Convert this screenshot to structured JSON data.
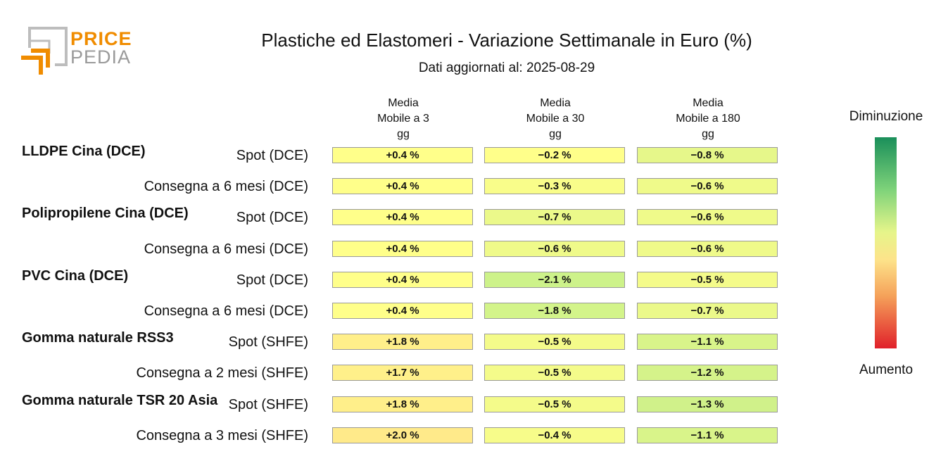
{
  "logo": {
    "price": "PRICE",
    "pedia": "PEDIA"
  },
  "title": "Plastiche ed Elastomeri - Variazione Settimanale in Euro (%)",
  "subtitle": "Dati aggiornati al: 2025-08-29",
  "legend": {
    "top": "Diminuzione",
    "bottom": "Aumento"
  },
  "chart_data": {
    "type": "table",
    "title": "Plastiche ed Elastomeri - Variazione Settimanale in Euro (%)",
    "columns": [
      "Media\nMobile a 3\ngg",
      "Media\nMobile a 30\ngg",
      "Media\nMobile a 180\ngg"
    ],
    "groups": [
      {
        "name": "LLDPE Cina (DCE)",
        "rows": [
          {
            "label": "Spot (DCE)",
            "values": [
              "+0.4 %",
              "-0.2 %",
              "-0.8 %"
            ]
          },
          {
            "label": "Consegna a 6 mesi (DCE)",
            "values": [
              "+0.4 %",
              "-0.3 %",
              "-0.6 %"
            ]
          }
        ]
      },
      {
        "name": "Polipropilene Cina (DCE)",
        "rows": [
          {
            "label": "Spot (DCE)",
            "values": [
              "+0.4 %",
              "-0.7 %",
              "-0.6 %"
            ]
          },
          {
            "label": "Consegna a 6 mesi (DCE)",
            "values": [
              "+0.4 %",
              "-0.6 %",
              "-0.6 %"
            ]
          }
        ]
      },
      {
        "name": "PVC Cina (DCE)",
        "rows": [
          {
            "label": "Spot (DCE)",
            "values": [
              "+0.4 %",
              "-2.1 %",
              "-0.5 %"
            ]
          },
          {
            "label": "Consegna a 6 mesi (DCE)",
            "values": [
              "+0.4 %",
              "-1.8 %",
              "-0.7 %"
            ]
          }
        ]
      },
      {
        "name": "Gomma naturale RSS3",
        "rows": [
          {
            "label": "Spot (SHFE)",
            "values": [
              "+1.8 %",
              "-0.5 %",
              "-1.1 %"
            ]
          },
          {
            "label": "Consegna a 2 mesi (SHFE)",
            "values": [
              "+1.7 %",
              "-0.5 %",
              "-1.2 %"
            ]
          }
        ]
      },
      {
        "name": "Gomma naturale TSR 20 Asia",
        "rows": [
          {
            "label": "Spot (SHFE)",
            "values": [
              "+1.8 %",
              "-0.5 %",
              "-1.3 %"
            ]
          },
          {
            "label": "Consegna a 3 mesi (SHFE)",
            "values": [
              "+2.0 %",
              "-0.4 %",
              "-1.1 %"
            ]
          }
        ]
      }
    ],
    "colors": {
      "+0.4 %": "#ffff8a",
      "-0.2 %": "#ffff8a",
      "-0.3 %": "#f9fd8a",
      "-0.4 %": "#f7fc8a",
      "-0.5 %": "#f4fb8a",
      "-0.6 %": "#effa8a",
      "-0.7 %": "#ebf98a",
      "-0.8 %": "#e6f78a",
      "-1.1 %": "#d9f48a",
      "-1.2 %": "#d5f38a",
      "-1.3 %": "#d0f18a",
      "-1.8 %": "#d3f48a",
      "-2.1 %": "#cdf28a",
      "+1.7 %": "#fff08a",
      "+1.8 %": "#ffef8a",
      "+2.0 %": "#ffea8a"
    }
  }
}
